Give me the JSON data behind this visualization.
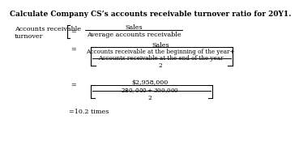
{
  "title": "Calculate Company CS’s accounts receivable turnover ratio for 20Y1.",
  "bg_color": "#ffffff",
  "text_color": "#000000",
  "label_left_1": "Accounts receivable",
  "label_left_2": "turnover",
  "eq1_numerator": "Sales",
  "eq1_denominator": "Average accounts receivable",
  "eq2_numerator": "Sales",
  "eq2_denom_line1": "Accounts receivable at the beginning of the year+",
  "eq2_denom_line2": "Accounts receivable at the end of the year",
  "eq2_denom_line3": "2",
  "eq3_numerator": "$2,958,000",
  "eq3_denom_line1": "$280,000 + $300,000",
  "eq3_denom_line2": "2",
  "result": "=10.2 times",
  "font_family": "DejaVu Serif"
}
